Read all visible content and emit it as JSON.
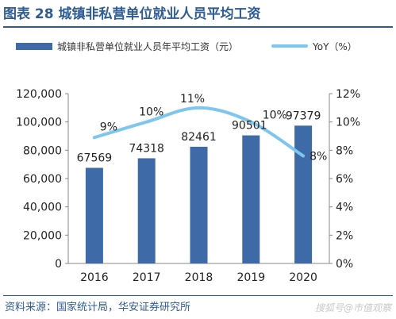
{
  "figure": {
    "title": "图表 28 城镇非私营单位就业人员平均工资",
    "source": "资料来源：国家统计局，华安证券研究所",
    "watermark": "搜狐号@市值观察"
  },
  "chart_data": {
    "type": "bar",
    "categories": [
      "2016",
      "2017",
      "2018",
      "2019",
      "2020"
    ],
    "series": [
      {
        "name": "城镇非私营单位就业人员年平均工资（元）",
        "type": "bar",
        "axis": "left",
        "color": "#3e6aa8",
        "values": [
          67569,
          74318,
          82461,
          90501,
          97379
        ],
        "labels": [
          "67569",
          "74318",
          "82461",
          "90501",
          "97379"
        ]
      },
      {
        "name": "YoY（%）",
        "type": "line",
        "axis": "right",
        "color": "#7ec6ee",
        "values": [
          8.9,
          10.0,
          11.0,
          10.0,
          7.6
        ],
        "labels": [
          "9%",
          "10%",
          "11%",
          "10%",
          "8%"
        ]
      }
    ],
    "y_left": {
      "min": 0,
      "max": 120000,
      "ticks": [
        "0",
        "20,000",
        "40,000",
        "60,000",
        "80,000",
        "100,000",
        "120,000"
      ]
    },
    "y_right": {
      "min": 0,
      "max": 12,
      "ticks": [
        "0%",
        "2%",
        "4%",
        "6%",
        "8%",
        "10%",
        "12%"
      ]
    },
    "legend_position": "top",
    "grid": false
  }
}
